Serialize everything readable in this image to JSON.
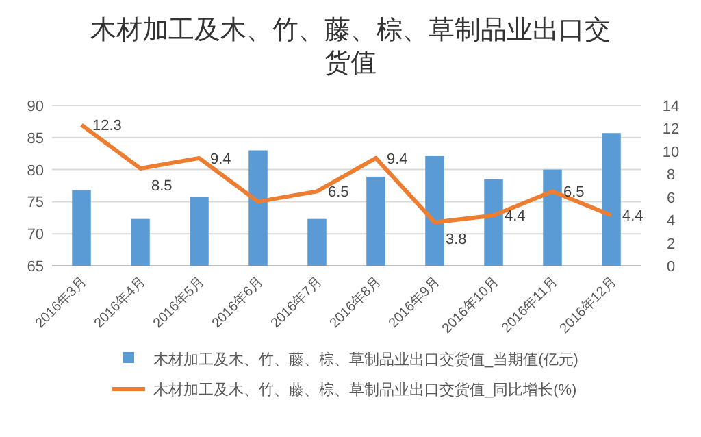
{
  "chart_data": {
    "type": "bar",
    "title": "木材加工及木、竹、藤、棕、草制品业出口交货值",
    "categories": [
      "2016年3月",
      "2016年4月",
      "2016年5月",
      "2016年6月",
      "2016年7月",
      "2016年8月",
      "2016年9月",
      "2016年10月",
      "2016年11月",
      "2016年12月"
    ],
    "series": [
      {
        "name": "木材加工及木、竹、藤、棕、草制品业出口交货值_当期值(亿元)",
        "color": "#5b9bd5",
        "values": [
          76.8,
          72.3,
          75.7,
          83.0,
          72.3,
          78.9,
          82.1,
          78.5,
          80.0,
          85.7
        ]
      },
      {
        "name": "木材加工及木、竹、藤、棕、草制品业出口交货值_同比增长(%)",
        "type": "line",
        "axis": "y2",
        "color": "#ed7d31",
        "values": [
          12.3,
          8.5,
          9.4,
          5.6,
          6.5,
          9.4,
          3.8,
          4.4,
          6.5,
          4.4
        ],
        "value_labels": [
          "12.3",
          "8.5",
          "9.4",
          null,
          "6.5",
          "9.4",
          "3.8",
          "4.4",
          "6.5",
          "4.4"
        ]
      }
    ],
    "ylim": [
      65,
      90
    ],
    "yticks": [
      65,
      70,
      75,
      80,
      85,
      90
    ],
    "y2lim": [
      0,
      14
    ],
    "y2ticks": [
      0,
      2,
      4,
      6,
      8,
      10,
      12,
      14
    ],
    "grid": "y",
    "legend": "bottom",
    "marker": "none"
  }
}
